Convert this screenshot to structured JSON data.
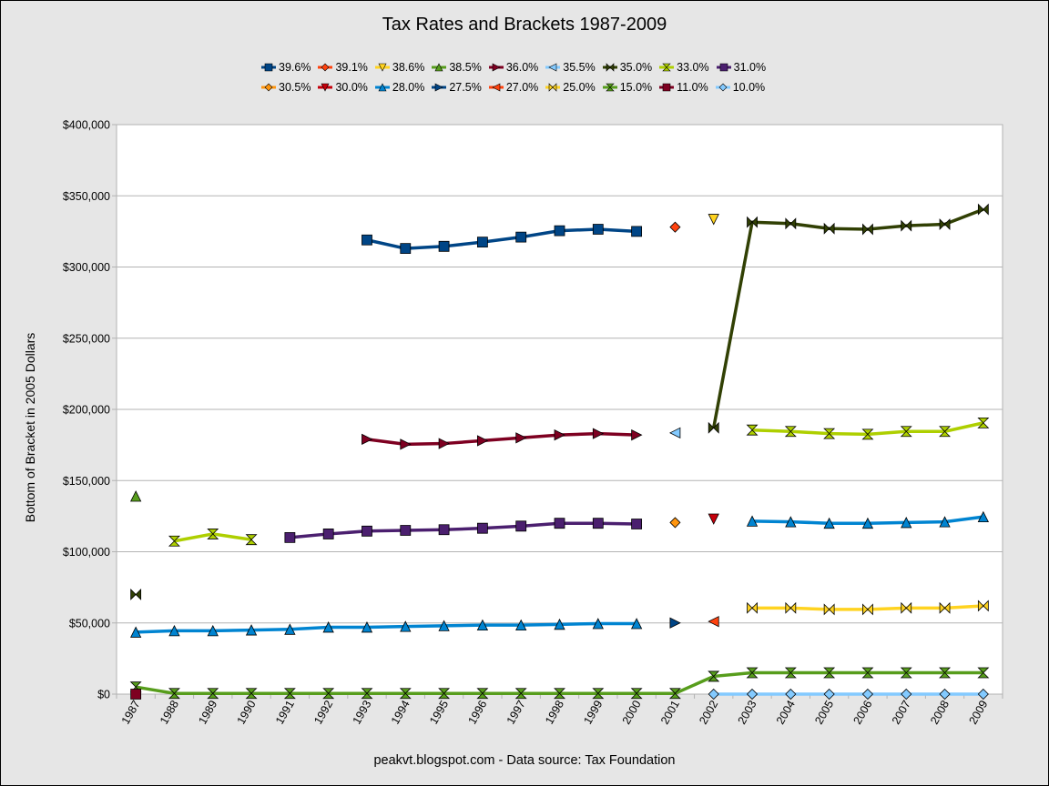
{
  "title": "Tax Rates and Brackets 1987-2009",
  "footer": "peakvt.blogspot.com - Data source: Tax Foundation",
  "chart_data": {
    "type": "line",
    "title": "Tax Rates and Brackets 1987-2009",
    "xlabel": "",
    "ylabel": "Bottom of Bracket in 2005 Dollars",
    "x": [
      1987,
      1988,
      1989,
      1990,
      1991,
      1992,
      1993,
      1994,
      1995,
      1996,
      1997,
      1998,
      1999,
      2000,
      2001,
      2002,
      2003,
      2004,
      2005,
      2006,
      2007,
      2008,
      2009
    ],
    "ylim": [
      0,
      400000
    ],
    "yticks": [
      0,
      50000,
      100000,
      150000,
      200000,
      250000,
      300000,
      350000,
      400000
    ],
    "ytick_labels": [
      "$0",
      "$50,000",
      "$100,000",
      "$150,000",
      "$200,000",
      "$250,000",
      "$300,000",
      "$350,000",
      "$400,000"
    ],
    "grid": "horizontal",
    "legend_position": "top",
    "series": [
      {
        "name": "39.6%",
        "color": "#004586",
        "marker": "square",
        "points": [
          [
            1993,
            319000
          ],
          [
            1994,
            313000
          ],
          [
            1995,
            314500
          ],
          [
            1996,
            317500
          ],
          [
            1997,
            321000
          ],
          [
            1998,
            325500
          ],
          [
            1999,
            326500
          ],
          [
            2000,
            325000
          ]
        ]
      },
      {
        "name": "39.1%",
        "color": "#ff420e",
        "marker": "diamond",
        "points": [
          [
            2001,
            328000
          ]
        ]
      },
      {
        "name": "38.6%",
        "color": "#ffd320",
        "marker": "tri-down",
        "points": [
          [
            2002,
            333500
          ]
        ]
      },
      {
        "name": "38.5%",
        "color": "#579d1c",
        "marker": "tri-up",
        "points": [
          [
            1987,
            139000
          ]
        ]
      },
      {
        "name": "36.0%",
        "color": "#7e0021",
        "marker": "tri-right",
        "points": [
          [
            1993,
            179000
          ],
          [
            1994,
            175500
          ],
          [
            1995,
            176000
          ],
          [
            1996,
            178000
          ],
          [
            1997,
            180000
          ],
          [
            1998,
            182000
          ],
          [
            1999,
            183000
          ],
          [
            2000,
            182000
          ]
        ]
      },
      {
        "name": "35.5%",
        "color": "#83caff",
        "marker": "tri-left",
        "points": [
          [
            2001,
            183500
          ]
        ]
      },
      {
        "name": "35.0%",
        "color": "#314004",
        "marker": "bowtie",
        "points": [
          [
            1987,
            70000
          ],
          null,
          [
            2002,
            187000
          ],
          [
            2003,
            331500
          ],
          [
            2004,
            330500
          ],
          [
            2005,
            327000
          ],
          [
            2006,
            326500
          ],
          [
            2007,
            329000
          ],
          [
            2008,
            330000
          ],
          [
            2009,
            340500
          ]
        ]
      },
      {
        "name": "33.0%",
        "color": "#aecf00",
        "marker": "hourglass",
        "points": [
          [
            1988,
            107500
          ],
          [
            1989,
            112500
          ],
          [
            1990,
            108500
          ],
          null,
          [
            2003,
            185500
          ],
          [
            2004,
            184500
          ],
          [
            2005,
            183000
          ],
          [
            2006,
            182500
          ],
          [
            2007,
            184500
          ],
          [
            2008,
            184500
          ],
          [
            2009,
            190500
          ]
        ]
      },
      {
        "name": "31.0%",
        "color": "#4b1f6f",
        "marker": "square",
        "points": [
          [
            1991,
            110000
          ],
          [
            1992,
            112500
          ],
          [
            1993,
            114500
          ],
          [
            1994,
            115000
          ],
          [
            1995,
            115500
          ],
          [
            1996,
            116500
          ],
          [
            1997,
            118000
          ],
          [
            1998,
            120000
          ],
          [
            1999,
            120000
          ],
          [
            2000,
            119500
          ]
        ]
      },
      {
        "name": "30.5%",
        "color": "#ff950e",
        "marker": "diamond",
        "points": [
          [
            2001,
            120500
          ]
        ]
      },
      {
        "name": "30.0%",
        "color": "#c5000b",
        "marker": "tri-down",
        "points": [
          [
            2002,
            123000
          ]
        ]
      },
      {
        "name": "28.0%",
        "color": "#0084d1",
        "marker": "tri-up",
        "points": [
          [
            1987,
            43500
          ],
          [
            1988,
            44500
          ],
          [
            1989,
            44500
          ],
          [
            1990,
            45000
          ],
          [
            1991,
            45500
          ],
          [
            1992,
            47000
          ],
          [
            1993,
            47000
          ],
          [
            1994,
            47500
          ],
          [
            1995,
            48000
          ],
          [
            1996,
            48500
          ],
          [
            1997,
            48500
          ],
          [
            1998,
            49000
          ],
          [
            1999,
            49500
          ],
          [
            2000,
            49500
          ],
          null,
          [
            2003,
            121500
          ],
          [
            2004,
            121000
          ],
          [
            2005,
            120000
          ],
          [
            2006,
            120000
          ],
          [
            2007,
            120500
          ],
          [
            2008,
            121000
          ],
          [
            2009,
            124500
          ]
        ]
      },
      {
        "name": "27.5%",
        "color": "#004586",
        "marker": "tri-right",
        "points": [
          [
            2001,
            50000
          ]
        ]
      },
      {
        "name": "27.0%",
        "color": "#ff420e",
        "marker": "tri-left",
        "points": [
          [
            2002,
            51000
          ]
        ]
      },
      {
        "name": "25.0%",
        "color": "#ffd320",
        "marker": "bowtie",
        "points": [
          [
            2003,
            60500
          ],
          [
            2004,
            60500
          ],
          [
            2005,
            59500
          ],
          [
            2006,
            59500
          ],
          [
            2007,
            60500
          ],
          [
            2008,
            60500
          ],
          [
            2009,
            62000
          ]
        ]
      },
      {
        "name": "15.0%",
        "color": "#579d1c",
        "marker": "hourglass",
        "points": [
          [
            1987,
            5000
          ],
          [
            1988,
            500
          ],
          [
            1989,
            500
          ],
          [
            1990,
            500
          ],
          [
            1991,
            500
          ],
          [
            1992,
            500
          ],
          [
            1993,
            500
          ],
          [
            1994,
            500
          ],
          [
            1995,
            500
          ],
          [
            1996,
            500
          ],
          [
            1997,
            500
          ],
          [
            1998,
            500
          ],
          [
            1999,
            500
          ],
          [
            2000,
            500
          ],
          [
            2001,
            500
          ],
          [
            2002,
            12500
          ],
          [
            2003,
            15000
          ],
          [
            2004,
            15000
          ],
          [
            2005,
            15000
          ],
          [
            2006,
            15000
          ],
          [
            2007,
            15000
          ],
          [
            2008,
            15000
          ],
          [
            2009,
            15000
          ]
        ]
      },
      {
        "name": "11.0%",
        "color": "#7e0021",
        "marker": "square",
        "points": [
          [
            1987,
            0
          ]
        ]
      },
      {
        "name": "10.0%",
        "color": "#83caff",
        "marker": "diamond",
        "points": [
          [
            2002,
            0
          ],
          [
            2003,
            0
          ],
          [
            2004,
            0
          ],
          [
            2005,
            0
          ],
          [
            2006,
            0
          ],
          [
            2007,
            0
          ],
          [
            2008,
            0
          ],
          [
            2009,
            0
          ]
        ]
      }
    ]
  }
}
